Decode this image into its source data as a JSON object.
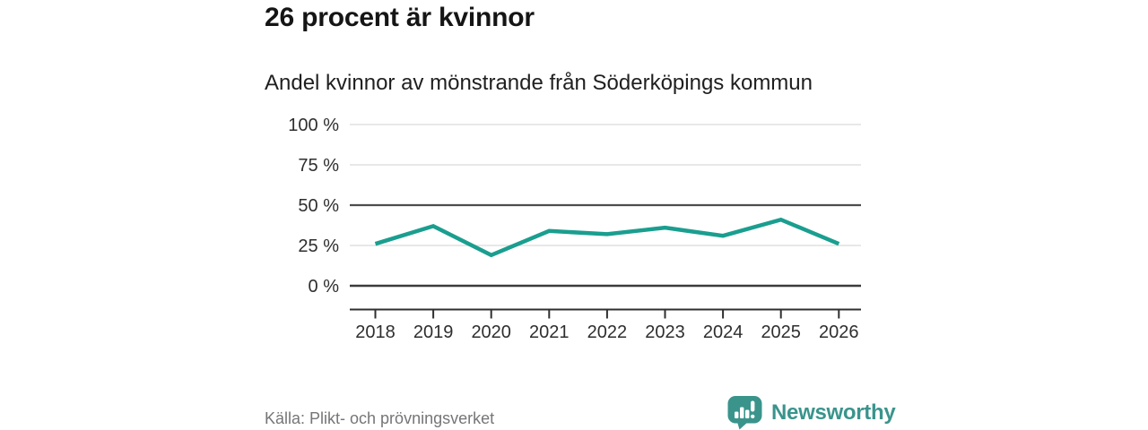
{
  "header": {
    "title": "26 procent är kvinnor",
    "subtitle": "Andel kvinnor av mönstrande från Söderköpings kommun"
  },
  "chart_data": {
    "type": "line",
    "title": "26 procent är kvinnor",
    "subtitle": "Andel kvinnor av mönstrande från Söderköpings kommun",
    "categories": [
      "2018",
      "2019",
      "2020",
      "2021",
      "2022",
      "2023",
      "2024",
      "2025",
      "2026"
    ],
    "values": [
      26,
      37,
      19,
      34,
      32,
      36,
      31,
      41,
      26
    ],
    "unit": "%",
    "ylim": [
      0,
      100
    ],
    "yticks": [
      0,
      25,
      50,
      75,
      100
    ],
    "ytick_labels": [
      "0 %",
      "25 %",
      "50 %",
      "75 %",
      "100 %"
    ],
    "emphasized_gridlines": [
      0,
      50
    ],
    "grid": true,
    "legend": "none",
    "line_color": "#1a9e8f"
  },
  "footer": {
    "source": "Källa: Plikt- och prövningsverket",
    "brand": "Newsworthy"
  },
  "colors": {
    "line": "#1a9e8f",
    "brand": "#3a948c",
    "grid_light": "#e0e0e0",
    "grid_dark": "#4d4d4d",
    "baseline": "#3b3b3b",
    "axis": "#2f2f2f",
    "title_text": "#151515",
    "muted_text": "#767676"
  }
}
